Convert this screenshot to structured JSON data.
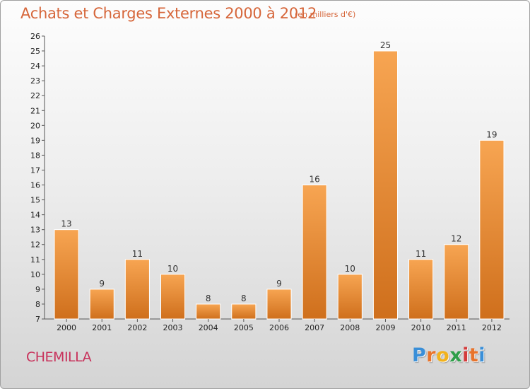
{
  "chart_data": {
    "type": "bar",
    "title": "Achats et Charges Externes 2000 à 2012",
    "subtitle": "(en milliers d'€)",
    "categories": [
      "2000",
      "2001",
      "2002",
      "2003",
      "2004",
      "2005",
      "2006",
      "2007",
      "2008",
      "2009",
      "2010",
      "2011",
      "2012"
    ],
    "values": [
      13,
      9,
      11,
      10,
      8,
      8,
      9,
      16,
      10,
      25,
      11,
      12,
      19
    ],
    "xlabel": "",
    "ylabel": "",
    "ylim": [
      7,
      26
    ],
    "yticks": [
      7,
      8,
      9,
      10,
      11,
      12,
      13,
      14,
      15,
      16,
      17,
      18,
      19,
      20,
      21,
      22,
      23,
      24,
      25,
      26
    ],
    "grid": false,
    "legend": "none",
    "bar_color_top": "#f7a552",
    "bar_color_bottom": "#cf6f1c"
  },
  "footer": {
    "city": "CHEMILLA"
  },
  "logo": {
    "letters": [
      "P",
      "r",
      "o",
      "x",
      "i",
      "t",
      "i"
    ],
    "colors": [
      "#3a8fd8",
      "#e8732a",
      "#f2b21c",
      "#2e9e4a",
      "#d43b3b",
      "#e8732a",
      "#3a8fd8"
    ]
  }
}
